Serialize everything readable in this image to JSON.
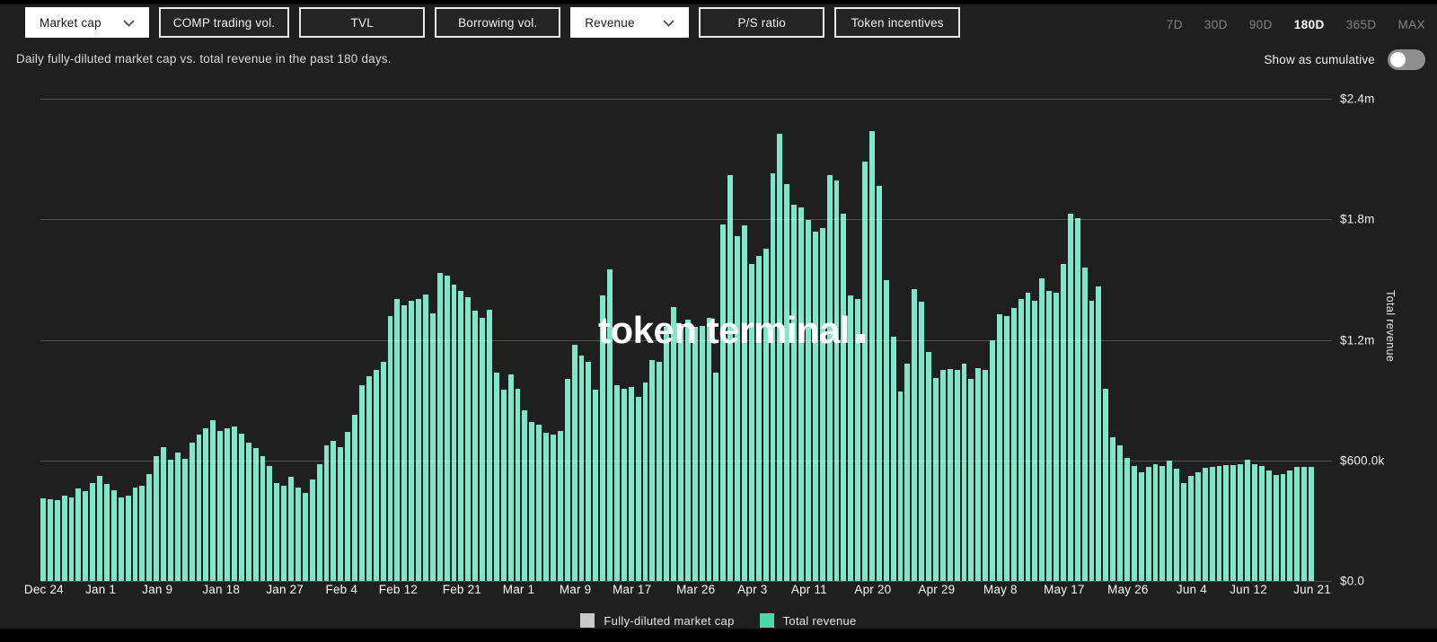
{
  "toolbar": {
    "metric_buttons": [
      {
        "label": "Market cap",
        "selected": true,
        "has_dropdown": true
      },
      {
        "label": "COMP trading vol.",
        "selected": false,
        "has_dropdown": false
      },
      {
        "label": "TVL",
        "selected": false,
        "has_dropdown": false
      },
      {
        "label": "Borrowing vol.",
        "selected": false,
        "has_dropdown": false
      },
      {
        "label": "Revenue",
        "selected": true,
        "has_dropdown": true
      },
      {
        "label": "P/S ratio",
        "selected": false,
        "has_dropdown": false
      },
      {
        "label": "Token incentives",
        "selected": false,
        "has_dropdown": false
      }
    ],
    "range_buttons": [
      {
        "label": "7D",
        "active": false
      },
      {
        "label": "30D",
        "active": false
      },
      {
        "label": "90D",
        "active": false
      },
      {
        "label": "180D",
        "active": true
      },
      {
        "label": "365D",
        "active": false
      },
      {
        "label": "MAX",
        "active": false
      }
    ]
  },
  "subheader": {
    "description": "Daily fully-diluted market cap vs. total revenue in the past 180 days.",
    "cumulative_toggle": {
      "label": "Show as cumulative",
      "state": "off"
    }
  },
  "chart": {
    "watermark": "token terminal",
    "y_axis": {
      "title": "Total revenue",
      "labels": [
        "$2.4m",
        "$1.8m",
        "$1.2m",
        "$600.0k",
        "$0.0"
      ]
    },
    "legend": [
      {
        "label": "Fully-diluted market cap",
        "color": "#c9c9c9"
      },
      {
        "label": "Total revenue",
        "color": "#4ed6ae"
      }
    ]
  },
  "chart_data": {
    "type": "bar",
    "ylabel": "Total revenue",
    "y_tick_labels": [
      "$0.0",
      "$600.0k",
      "$1.2m",
      "$1.8m",
      "$2.4m"
    ],
    "ylim_usd": [
      0,
      2400000
    ],
    "grid": "horizontal",
    "legend_position": "bottom",
    "x_range_days": 180,
    "x_tick_labels": [
      "Dec 24",
      "Jan 1",
      "Jan 9",
      "Jan 18",
      "Jan 27",
      "Feb 4",
      "Feb 12",
      "Feb 21",
      "Mar 1",
      "Mar 9",
      "Mar 17",
      "Mar 26",
      "Apr 3",
      "Apr 11",
      "Apr 20",
      "Apr 29",
      "May 8",
      "May 17",
      "May 26",
      "Jun 4",
      "Jun 12",
      "Jun 21"
    ],
    "x_tick_indices": [
      0,
      8,
      16,
      25,
      34,
      42,
      50,
      59,
      67,
      75,
      83,
      92,
      100,
      108,
      117,
      126,
      135,
      144,
      153,
      162,
      170,
      179
    ],
    "series": [
      {
        "name": "Total revenue",
        "unit": "USD thousands",
        "values": [
          410,
          408,
          404,
          425,
          418,
          462,
          445,
          487,
          525,
          483,
          450,
          417,
          425,
          464,
          472,
          534,
          620,
          668,
          605,
          640,
          610,
          690,
          730,
          762,
          801,
          746,
          758,
          770,
          735,
          690,
          660,
          620,
          573,
          487,
          475,
          519,
          464,
          440,
          506,
          581,
          675,
          699,
          668,
          741,
          827,
          973,
          1020,
          1051,
          1091,
          1318,
          1404,
          1373,
          1396,
          1404,
          1428,
          1334,
          1534,
          1522,
          1475,
          1443,
          1412,
          1344,
          1310,
          1349,
          1036,
          950,
          1028,
          957,
          848,
          793,
          777,
          738,
          730,
          746,
          1004,
          1177,
          1122,
          1091,
          950,
          1420,
          1553,
          973,
          957,
          965,
          918,
          989,
          1098,
          1091,
          1263,
          1365,
          1279,
          1302,
          1263,
          1271,
          1310,
          1036,
          1776,
          2020,
          1718,
          1772,
          1577,
          1616,
          1655,
          2031,
          2227,
          1976,
          1874,
          1858,
          1796,
          1741,
          1757,
          2020,
          1995,
          1827,
          1420,
          1404,
          2089,
          2239,
          1968,
          1498,
          1216,
          942,
          1083,
          1451,
          1388,
          1138,
          1012,
          1051,
          1054,
          1051,
          1083,
          1004,
          1059,
          1051,
          1200,
          1326,
          1318,
          1357,
          1404,
          1435,
          1396,
          1506,
          1443,
          1435,
          1576,
          1827,
          1804,
          1561,
          1396,
          1467,
          957,
          715,
          675,
          613,
          573,
          542,
          566,
          581,
          573,
          597,
          558,
          487,
          522,
          542,
          563,
          566,
          573,
          577,
          578,
          581,
          605,
          581,
          573,
          550,
          527,
          534,
          550,
          566,
          569,
          566
        ]
      },
      {
        "name": "Fully-diluted market cap",
        "unit": "USD thousands",
        "values": []
      }
    ]
  },
  "colors": {
    "background": "#1f1f1f",
    "bar": "#7de7c8",
    "gridline": "rgba(255,255,255,0.22)",
    "legend_marketcap_swatch": "#c9c9c9",
    "legend_revenue_swatch": "#4ed6ae",
    "active_range": "#ffffff",
    "inactive_range": "#838383"
  }
}
